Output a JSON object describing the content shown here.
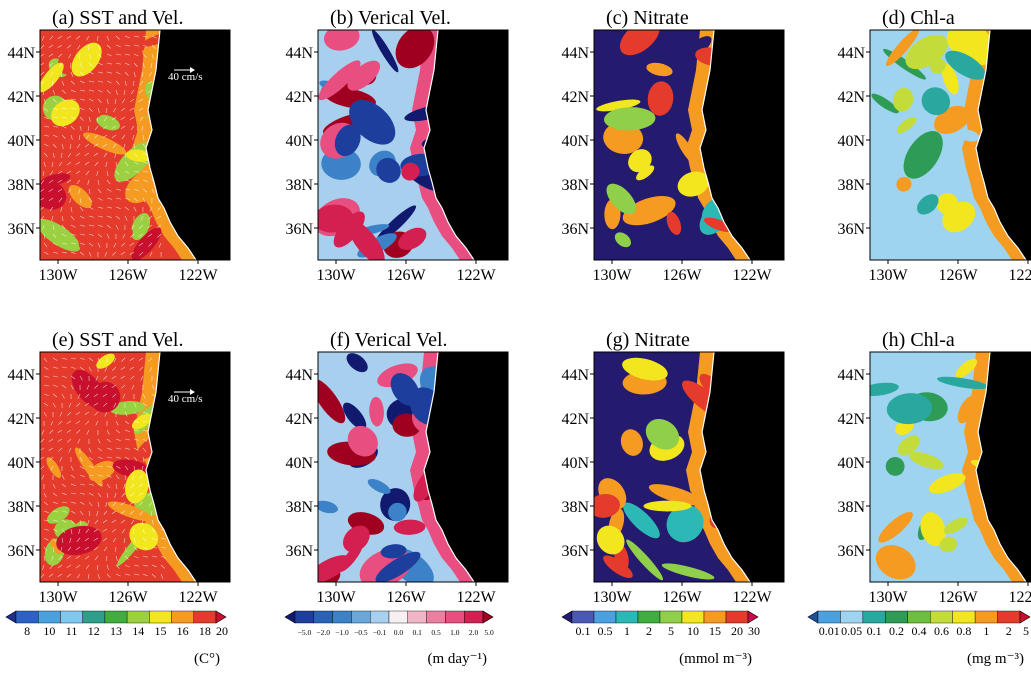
{
  "chart_data": {
    "type": "heatmap",
    "panels": [
      {
        "id": "a",
        "title": "(a) SST and Vel.",
        "variable": "sst",
        "scalebar": "40 cm/s",
        "palette": "sst"
      },
      {
        "id": "b",
        "title": "(b) Verical Vel.",
        "variable": "w",
        "palette": "w"
      },
      {
        "id": "c",
        "title": "(c) Nitrate",
        "variable": "no3",
        "palette": "no3"
      },
      {
        "id": "d",
        "title": "(d) Chl-a",
        "variable": "chl",
        "palette": "chl"
      },
      {
        "id": "e",
        "title": "(e) SST and Vel.",
        "variable": "sst",
        "scalebar": "40 cm/s",
        "palette": "sst"
      },
      {
        "id": "f",
        "title": "(f) Verical Vel.",
        "variable": "w",
        "palette": "w"
      },
      {
        "id": "g",
        "title": "(g) Nitrate",
        "variable": "no3",
        "palette": "no3"
      },
      {
        "id": "h",
        "title": "(h) Chl-a",
        "variable": "chl",
        "palette": "chl"
      }
    ],
    "y_ticks": [
      "44N",
      "42N",
      "40N",
      "38N",
      "36N"
    ],
    "x_ticks": [
      "130W",
      "126W",
      "122W"
    ],
    "colorbars": [
      {
        "variable": "sst",
        "unit": "(C°)",
        "ticks": [
          "8",
          "10",
          "11",
          "12",
          "13",
          "14",
          "15",
          "16",
          "18",
          "20"
        ],
        "colors": [
          "#1d2f8e",
          "#2c62c4",
          "#4aa0e0",
          "#80c8f0",
          "#2f9e8a",
          "#3fae3f",
          "#9bd040",
          "#f2e61e",
          "#f59b22",
          "#e53b2c",
          "#c8102e"
        ]
      },
      {
        "variable": "w",
        "unit": "(m day⁻¹)",
        "ticks": [
          "−5.0",
          "−2.0",
          "−1.0",
          "−0.5",
          "−0.1",
          "0.0",
          "0.1",
          "0.5",
          "1.0",
          "2.0",
          "5.0"
        ],
        "colors": [
          "#111a6e",
          "#1e3e9e",
          "#2a62b8",
          "#3b82c8",
          "#6aa8dc",
          "#a8d0ee",
          "#f6f0f2",
          "#f0b6c8",
          "#ec7ea0",
          "#e84e80",
          "#d42050",
          "#a00020"
        ]
      },
      {
        "variable": "no3",
        "unit": "(mmol m⁻³)",
        "ticks": [
          "0.1",
          "0.5",
          "1",
          "2",
          "5",
          "10",
          "15",
          "20",
          "30"
        ],
        "colors": [
          "#241a6e",
          "#4b58b4",
          "#4aa0e0",
          "#2cb8b4",
          "#3fae3f",
          "#8fcf4a",
          "#f2e61e",
          "#f59b22",
          "#e53b2c",
          "#c80a4a"
        ]
      },
      {
        "variable": "chl",
        "unit": "(mg m⁻³)",
        "ticks": [
          "0.01",
          "0.05",
          "0.1",
          "0.2",
          "0.4",
          "0.6",
          "0.8",
          "1",
          "2",
          "5"
        ],
        "colors": [
          "#1d4f9e",
          "#4aa0e0",
          "#9ed4f0",
          "#2aa8a0",
          "#2e9c56",
          "#6fbf3e",
          "#c4dc3a",
          "#f2e61e",
          "#f59b22",
          "#e53b2c",
          "#c8102e"
        ]
      }
    ]
  }
}
